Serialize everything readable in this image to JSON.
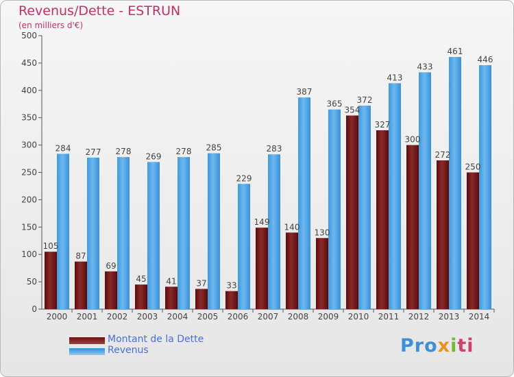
{
  "chart_data": {
    "type": "bar",
    "title": "Revenus/Dette - ESTRUN",
    "subtitle": "(en milliers d'€)",
    "categories": [
      "2000",
      "2001",
      "2002",
      "2003",
      "2004",
      "2005",
      "2006",
      "2007",
      "2008",
      "2009",
      "2010",
      "2011",
      "2012",
      "2013",
      "2014"
    ],
    "series": [
      {
        "name": "Montant de la Dette",
        "color": "#6b0f0f",
        "values": [
          105,
          87,
          69,
          45,
          41,
          37,
          33,
          149,
          140,
          130,
          354,
          327,
          300,
          272,
          250
        ]
      },
      {
        "name": "Revenus",
        "color": "#4ea3e6",
        "values": [
          284,
          277,
          278,
          269,
          278,
          285,
          229,
          283,
          387,
          365,
          372,
          413,
          433,
          461,
          446
        ]
      }
    ],
    "ylim": [
      0,
      500
    ],
    "yticks": [
      0,
      50,
      100,
      150,
      200,
      250,
      300,
      350,
      400,
      450,
      500
    ],
    "grid": false,
    "legend_position": "bottom-left"
  },
  "logo": {
    "parts": [
      "Pro",
      "x",
      "i",
      "ti"
    ]
  }
}
